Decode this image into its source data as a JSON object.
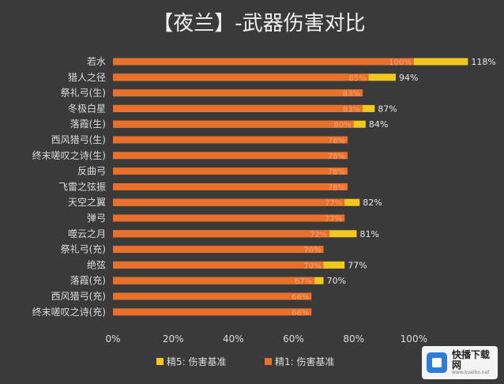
{
  "chart_data": {
    "type": "bar",
    "orientation": "horizontal",
    "title": "【夜兰】-武器伤害对比",
    "categories": [
      "若水",
      "猎人之径",
      "祭礼弓(生)",
      "冬极白星",
      "落霞(生)",
      "西风猎弓(生)",
      "终末嗟叹之诗(生)",
      "反曲弓",
      "飞雷之弦振",
      "天空之翼",
      "弹弓",
      "噬云之月",
      "祭礼弓(充)",
      "绝弦",
      "落霞(充)",
      "西风猎弓(充)",
      "终末嗟叹之诗(充)"
    ],
    "series": [
      {
        "name": "精5: 伤害基准",
        "color": "#f2c81e",
        "values": [
          118,
          94,
          null,
          87,
          84,
          null,
          null,
          null,
          null,
          82,
          null,
          81,
          null,
          77,
          70,
          null,
          null
        ]
      },
      {
        "name": "精1: 伤害基准",
        "color": "#e9702b",
        "values": [
          100,
          85,
          83,
          83,
          80,
          78,
          78,
          78,
          78,
          77,
          77,
          72,
          70,
          70,
          67,
          66,
          66
        ]
      }
    ],
    "series_labels": [
      {
        "show": true
      },
      {
        "show": true,
        "faded": true
      }
    ],
    "xlim": [
      0,
      120
    ],
    "xticks": [
      "0%",
      "20%",
      "40%",
      "60%",
      "80%",
      "100%"
    ],
    "xtick_values": [
      0,
      20,
      40,
      60,
      80,
      100
    ],
    "value_suffix": "%",
    "grid": false,
    "legend_position": "bottom",
    "background": "#3a3a3a",
    "text_color": "#dcdcdc"
  },
  "watermark": {
    "title": "快播下载网",
    "subtitle": "www.kuaibo.net"
  }
}
